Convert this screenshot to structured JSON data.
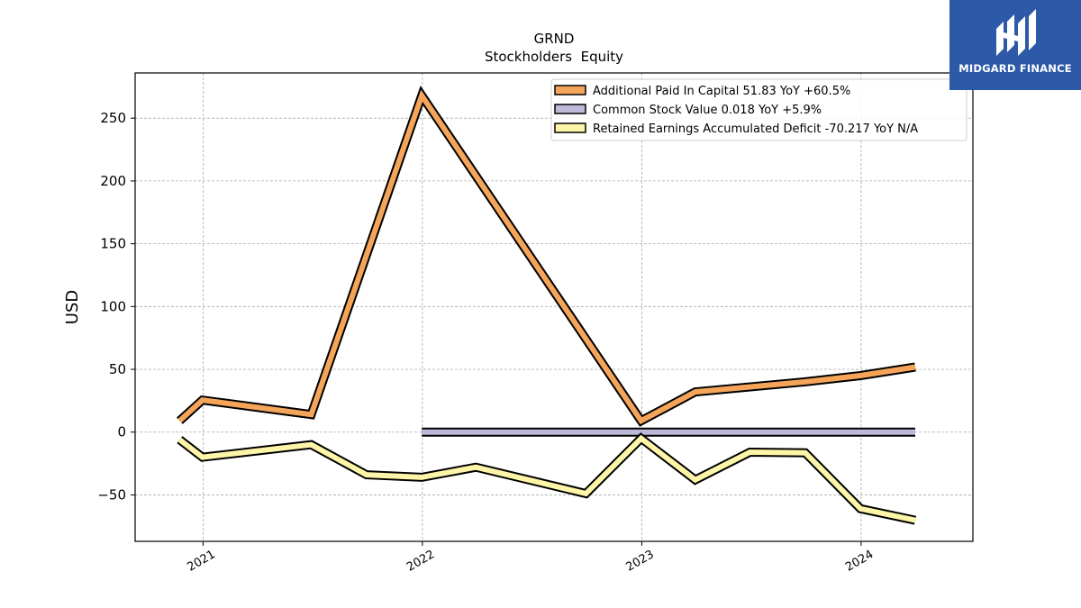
{
  "brand": {
    "name": "MIDGARD FINANCE",
    "bg_color": "#2c5aa8"
  },
  "chart_data": {
    "type": "line",
    "title": "GRND",
    "subtitle": "Stockholders  Equity",
    "xlabel": "",
    "ylabel": "USD",
    "xlim": [
      "2020-09-10",
      "2024-07-05"
    ],
    "ylim": [
      -87,
      286
    ],
    "x_ticks": [
      "2021",
      "2022",
      "2023",
      "2024"
    ],
    "y_ticks": [
      -50,
      0,
      50,
      100,
      150,
      200,
      250
    ],
    "y_tick_labels": [
      "−50",
      "0",
      "50",
      "100",
      "150",
      "200",
      "250"
    ],
    "grid": true,
    "legend_position": "top-right",
    "series": [
      {
        "name": "Additional Paid In Capital  51.83 YoY +60.5%",
        "color": "#f5a55a",
        "x": [
          "2020-11-23",
          "2020-12-31",
          "2021-06-30",
          "2021-12-31",
          "2022-12-31",
          "2023-03-31",
          "2023-09-30",
          "2023-12-31",
          "2024-03-31"
        ],
        "values": [
          9.0,
          25.5,
          14.0,
          268.0,
          9.0,
          32.0,
          40.0,
          45.0,
          51.8
        ]
      },
      {
        "name": "Common Stock Value  0.018 YoY +5.9%",
        "color": "#bcbad8",
        "x": [
          "2021-12-31",
          "2024-03-31"
        ],
        "values": [
          0.018,
          0.018
        ]
      },
      {
        "name": "Retained Earnings Accumulated Deficit  -70.217 YoY N/A",
        "color": "#fdf5a8",
        "x": [
          "2020-11-23",
          "2020-12-31",
          "2021-06-30",
          "2021-09-30",
          "2021-12-31",
          "2022-03-31",
          "2022-09-30",
          "2022-12-31",
          "2023-03-31",
          "2023-06-30",
          "2023-09-30",
          "2023-12-31",
          "2024-03-31"
        ],
        "values": [
          -6.0,
          -20.0,
          -10.0,
          -34.0,
          -36.0,
          -28.0,
          -49.0,
          -5.0,
          -38.0,
          -16.0,
          -16.5,
          -61.0,
          -70.2
        ]
      }
    ]
  }
}
